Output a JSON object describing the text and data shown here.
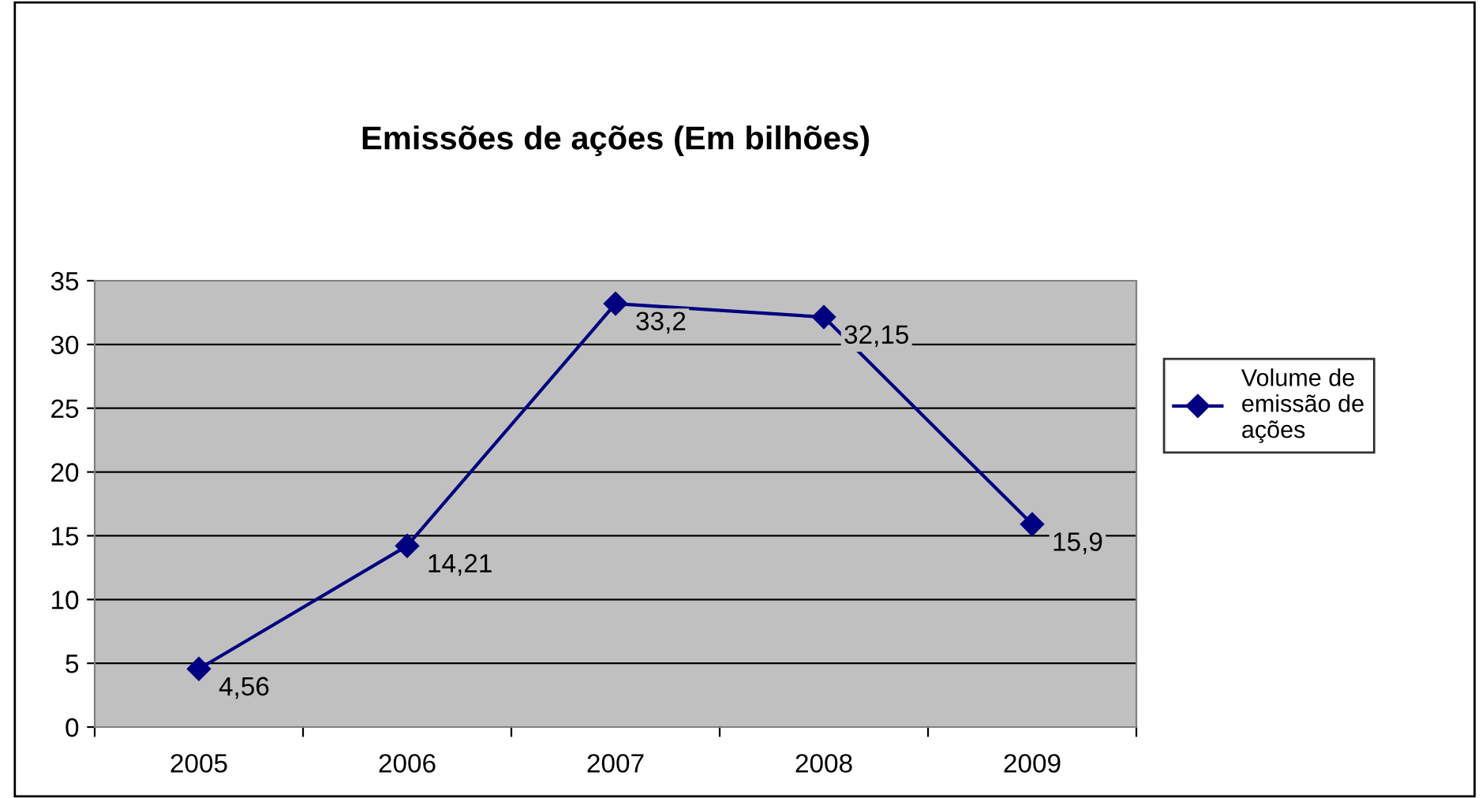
{
  "chart_data": {
    "type": "line",
    "title": "Emissões de ações (Em bilhões)",
    "categories": [
      "2005",
      "2006",
      "2007",
      "2008",
      "2009"
    ],
    "series": [
      {
        "name": "Volume de emissão de ações",
        "color": "#000080",
        "values": [
          4.56,
          14.21,
          33.2,
          32.15,
          15.9
        ],
        "value_labels": [
          "4,56",
          "14,21",
          "33,2",
          "32,15",
          "15,9"
        ]
      }
    ],
    "ylim": [
      0,
      35
    ],
    "yticks": [
      0,
      5,
      10,
      15,
      20,
      25,
      30,
      35
    ],
    "grid": "y",
    "legend": "right",
    "marker": "diamond",
    "line_style": "solid"
  }
}
